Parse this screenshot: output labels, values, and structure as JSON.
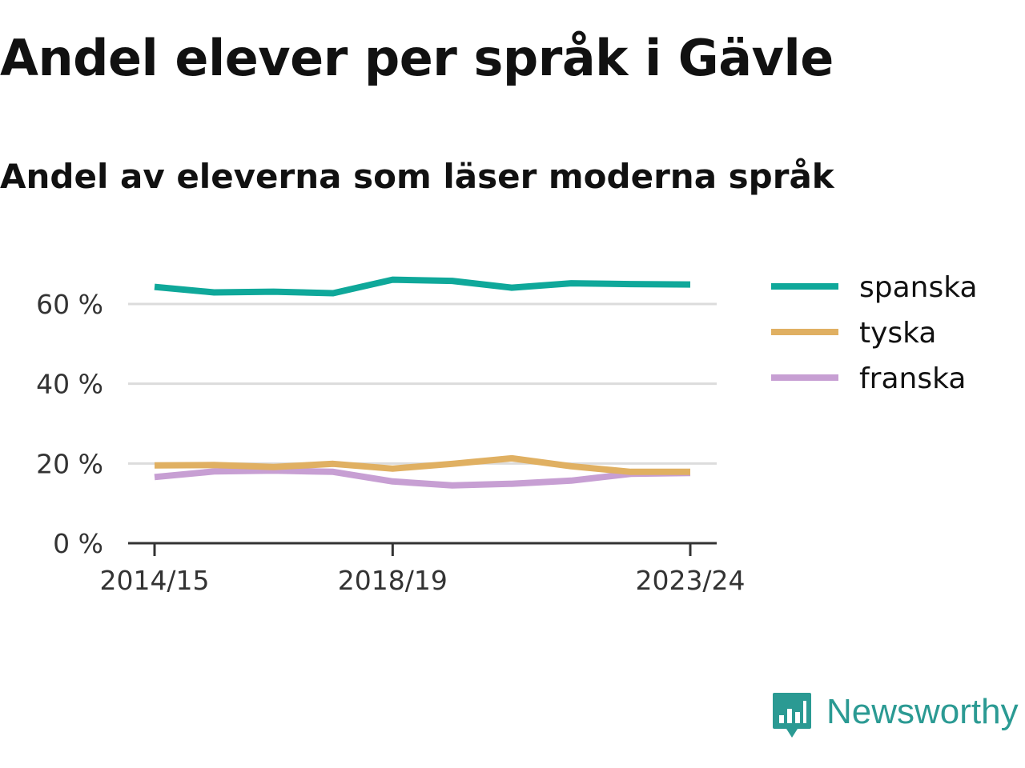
{
  "title": "Andel elever per språk i Gävle",
  "subtitle": "Andel av eleverna som läser moderna språk",
  "brand": {
    "name": "Newsworthy",
    "color": "#2b9a93"
  },
  "chart_data": {
    "type": "line",
    "x": [
      "2014/15",
      "2015/16",
      "2016/17",
      "2017/18",
      "2018/19",
      "2019/20",
      "2020/21",
      "2021/22",
      "2022/23",
      "2023/24"
    ],
    "x_tick_labels": [
      "2014/15",
      "2018/19",
      "2023/24"
    ],
    "y_ticks": [
      0,
      20,
      40,
      60
    ],
    "y_tick_labels": [
      "0 %",
      "20 %",
      "40 %",
      "60 %"
    ],
    "ylim": [
      0,
      66
    ],
    "grid": true,
    "legend_position": "right",
    "series": [
      {
        "name": "spanska",
        "color": "#0fa89a",
        "values": [
          64.3,
          62.9,
          63.1,
          62.7,
          66.1,
          65.8,
          64.1,
          65.2,
          65.0,
          64.9
        ]
      },
      {
        "name": "tyska",
        "color": "#e0b062",
        "values": [
          19.5,
          19.6,
          19.1,
          19.9,
          18.7,
          19.9,
          21.3,
          19.3,
          17.9,
          17.9
        ]
      },
      {
        "name": "franska",
        "color": "#c79fd3",
        "values": [
          16.6,
          18.0,
          18.2,
          17.9,
          15.5,
          14.5,
          14.9,
          15.7,
          17.4,
          17.6
        ]
      }
    ]
  }
}
